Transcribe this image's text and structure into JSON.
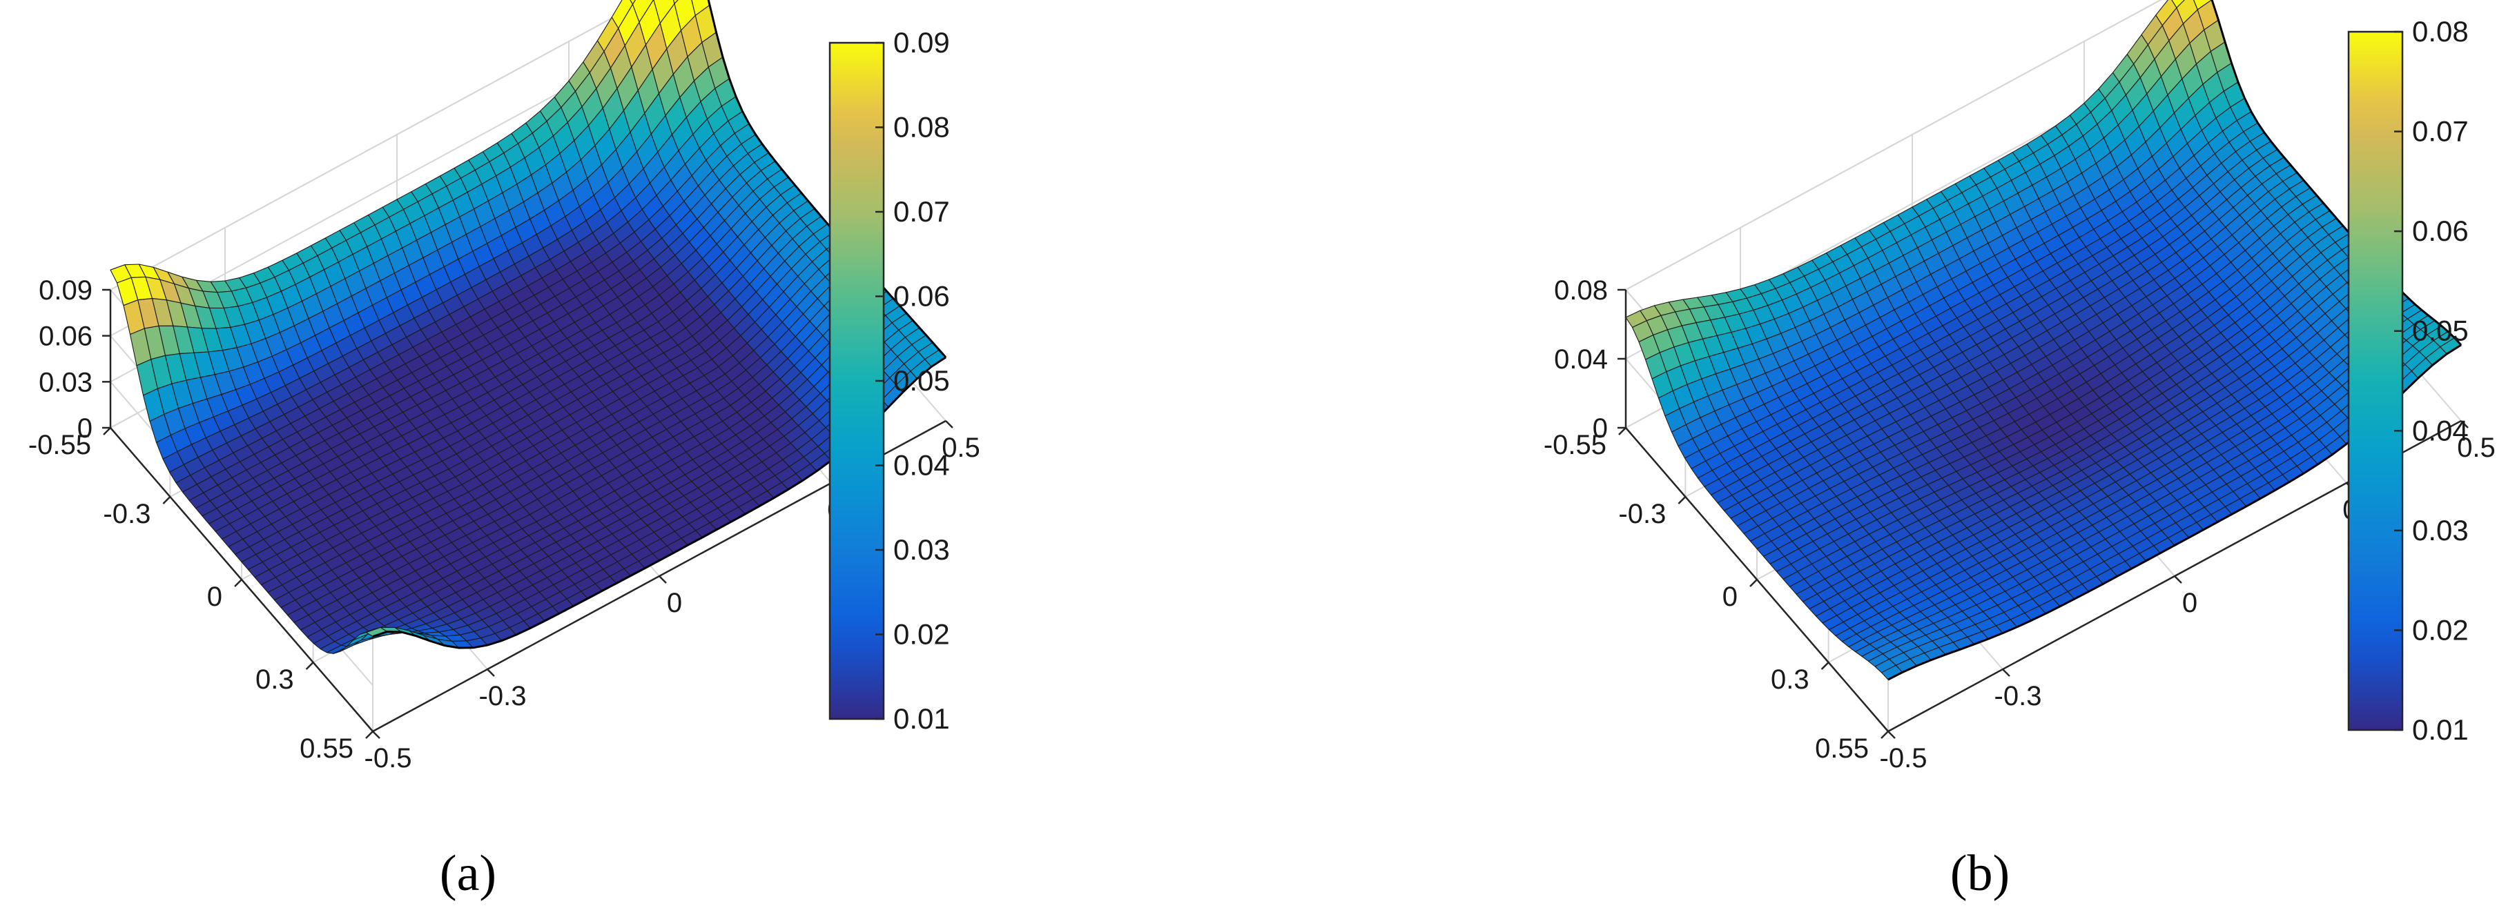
{
  "chart_data": [
    {
      "type": "surface",
      "panel_label": "(a)",
      "colormap": "parula",
      "x_ticks": [
        -0.55,
        -0.3,
        0,
        0.3,
        0.55
      ],
      "x_tick_labels": [
        "-0.55",
        "-0.3",
        "0",
        "0.3",
        "0.55"
      ],
      "y_ticks": [
        -0.5,
        -0.3,
        0,
        0.3,
        0.5
      ],
      "y_tick_labels": [
        "-0.5",
        "-0.3",
        "0",
        "0.3",
        "0.5"
      ],
      "z_ticks": [
        0,
        0.03,
        0.06,
        0.09
      ],
      "z_tick_labels": [
        "0",
        "0.03",
        "0.06",
        "0.09"
      ],
      "xlim": [
        -0.55,
        0.55
      ],
      "ylim": [
        -0.5,
        0.5
      ],
      "zlim": [
        0,
        0.09
      ],
      "colorbar": {
        "range": [
          0.01,
          0.09
        ],
        "ticks": [
          "0.01",
          "0.02",
          "0.03",
          "0.04",
          "0.05",
          "0.06",
          "0.07",
          "0.08",
          "0.09"
        ]
      },
      "grid": true
    },
    {
      "type": "surface",
      "panel_label": "(b)",
      "colormap": "parula",
      "x_ticks": [
        -0.55,
        -0.3,
        0,
        0.3,
        0.55
      ],
      "x_tick_labels": [
        "-0.55",
        "-0.3",
        "0",
        "0.3",
        "0.55"
      ],
      "y_ticks": [
        -0.5,
        -0.3,
        0,
        0.3,
        0.5
      ],
      "y_tick_labels": [
        "-0.5",
        "-0.3",
        "0",
        "0.3",
        "0.5"
      ],
      "z_ticks": [
        0,
        0.04,
        0.08
      ],
      "z_tick_labels": [
        "0",
        "0.04",
        "0.08"
      ],
      "xlim": [
        -0.55,
        0.55
      ],
      "ylim": [
        -0.5,
        0.5
      ],
      "zlim": [
        0,
        0.08
      ],
      "colorbar": {
        "range": [
          0.01,
          0.08
        ],
        "ticks": [
          "0.01",
          "0.02",
          "0.03",
          "0.04",
          "0.05",
          "0.06",
          "0.07",
          "0.08"
        ]
      },
      "grid": true
    }
  ]
}
